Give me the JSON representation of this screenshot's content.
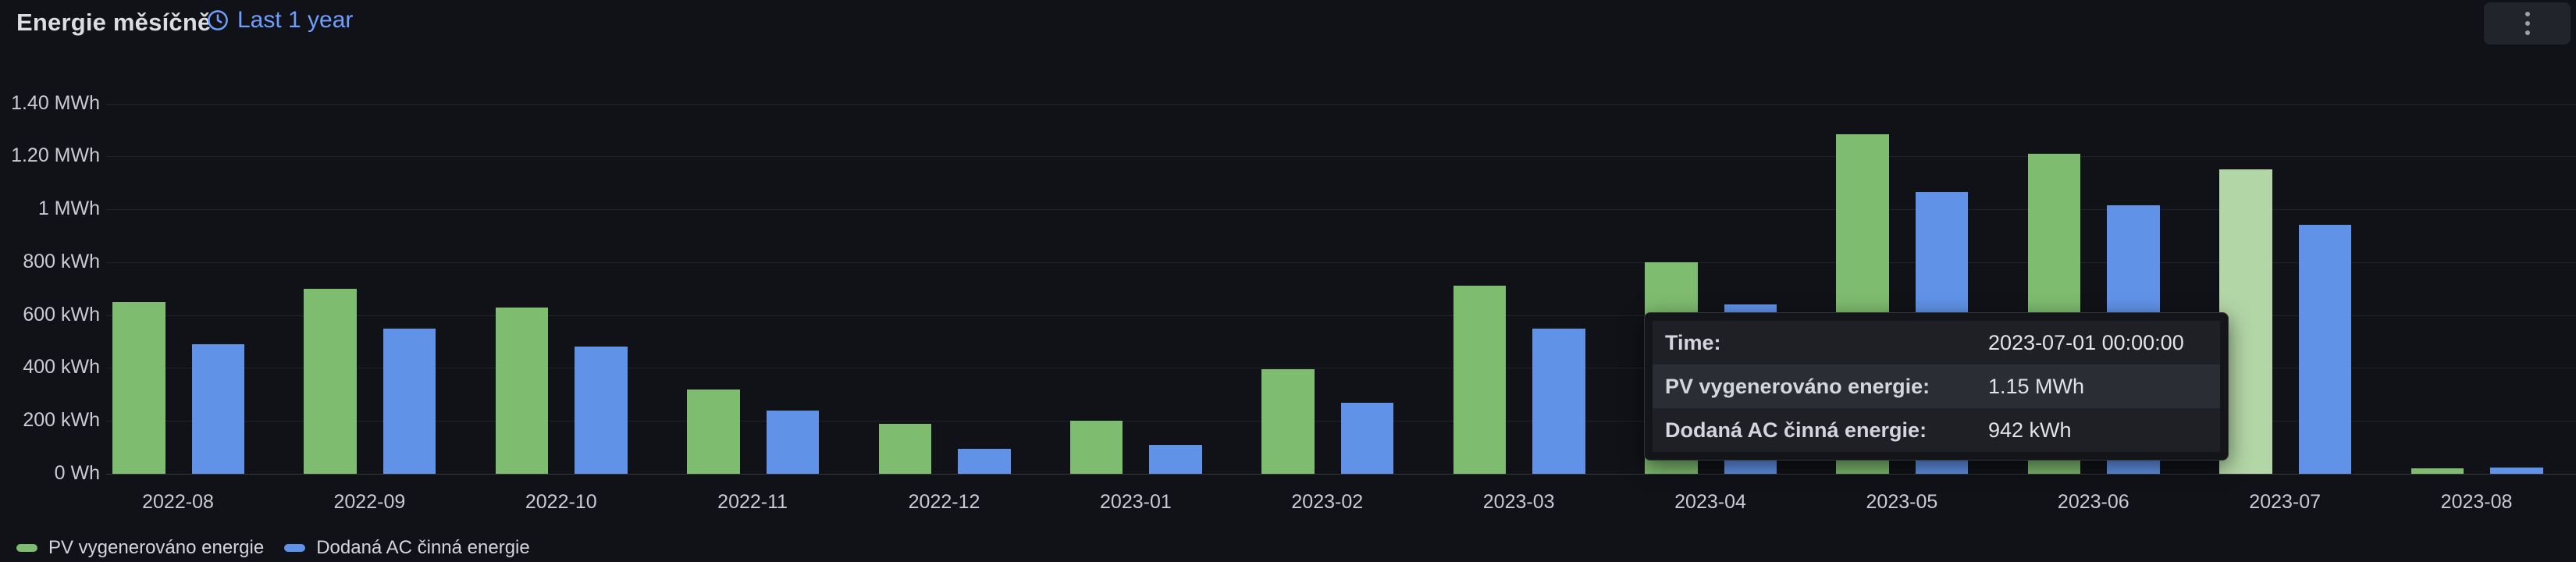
{
  "header": {
    "title": "Energie měsíčně",
    "time_range": "Last 1 year"
  },
  "chart_data": {
    "type": "bar",
    "title": "Energie měsíčně",
    "unit": "kWh",
    "xlabel": "",
    "ylabel": "",
    "grid": "horizontal",
    "legend_position": "bottom-left",
    "ylim": [
      0,
      1400
    ],
    "yticks": [
      {
        "value": 0,
        "label": "0 Wh"
      },
      {
        "value": 200,
        "label": "200 kWh"
      },
      {
        "value": 400,
        "label": "400 kWh"
      },
      {
        "value": 600,
        "label": "600 kWh"
      },
      {
        "value": 800,
        "label": "800 kWh"
      },
      {
        "value": 1000,
        "label": "1 MWh"
      },
      {
        "value": 1200,
        "label": "1.20 MWh"
      },
      {
        "value": 1400,
        "label": "1.40 MWh"
      }
    ],
    "categories": [
      "2022-08",
      "2022-09",
      "2022-10",
      "2022-11",
      "2022-12",
      "2023-01",
      "2023-02",
      "2023-03",
      "2023-04",
      "2023-05",
      "2023-06",
      "2023-07",
      "2023-08"
    ],
    "series": [
      {
        "name": "PV vygenerováno energie",
        "color": "#7ebc6f",
        "values": [
          650,
          700,
          630,
          320,
          190,
          200,
          395,
          710,
          800,
          1285,
          1210,
          1150,
          20
        ]
      },
      {
        "name": "Dodaná AC činná energie",
        "color": "#6093e8",
        "values": [
          490,
          550,
          480,
          240,
          95,
          110,
          270,
          550,
          640,
          1065,
          1015,
          942,
          25
        ]
      }
    ],
    "hover": {
      "category": "2023-07",
      "series": "PV vygenerováno energie",
      "highlight_color": "#b3d6a6"
    }
  },
  "tooltip": {
    "time_label": "Time:",
    "time_value": "2023-07-01 00:00:00",
    "rows": [
      {
        "label": "PV vygenerováno energie:",
        "value": "1.15 MWh",
        "highlighted": true
      },
      {
        "label": "Dodaná AC činná energie:",
        "value": "942 kWh",
        "highlighted": false
      }
    ]
  },
  "colors": {
    "background": "#111217",
    "accent_link": "#6e9fff",
    "green_series": "#7ebc6f",
    "green_highlight": "#b3d6a6",
    "blue_series": "#6093e8"
  }
}
